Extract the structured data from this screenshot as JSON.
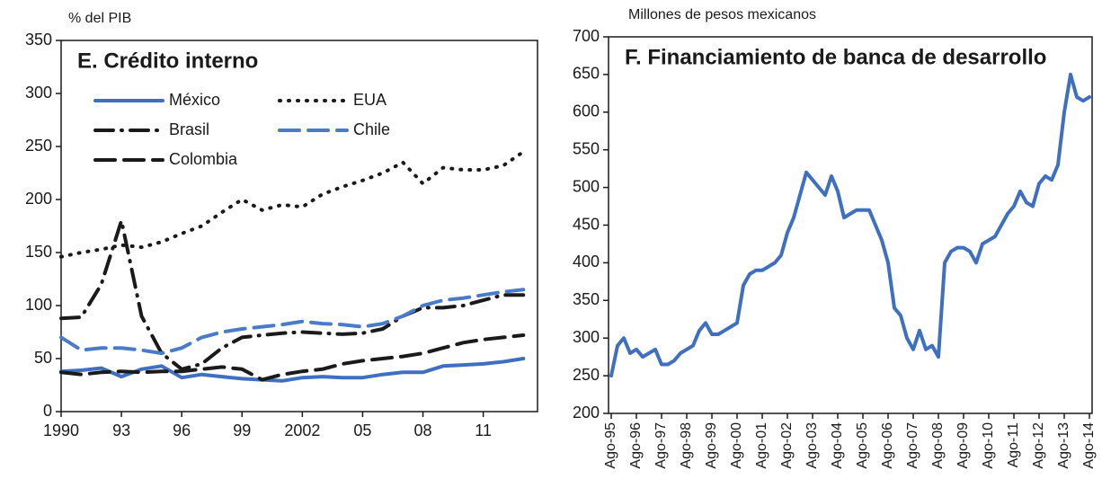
{
  "chart_data": [
    {
      "type": "line",
      "title": "E. Crédito interno",
      "y_label": "% del PIB",
      "x": [
        1990,
        1991,
        1992,
        1993,
        1994,
        1995,
        1996,
        1997,
        1998,
        1999,
        2000,
        2001,
        2002,
        2003,
        2004,
        2005,
        2006,
        2007,
        2008,
        2009,
        2010,
        2011,
        2012,
        2013
      ],
      "xlim": [
        1990,
        2013.7
      ],
      "xticks": [
        1990,
        {
          "value": 1993,
          "label": "93"
        },
        {
          "value": 1996,
          "label": "96"
        },
        {
          "value": 1999,
          "label": "99"
        },
        2002,
        {
          "value": 2005,
          "label": "05"
        },
        {
          "value": 2008,
          "label": "08"
        },
        {
          "value": 2011,
          "label": "11"
        }
      ],
      "ylim": [
        0,
        350
      ],
      "yticks": [
        0,
        50,
        100,
        150,
        200,
        250,
        300,
        350
      ],
      "series": [
        {
          "name": "México",
          "color": "#3f6fc0",
          "style": "solid",
          "values": [
            38,
            39,
            41,
            33,
            40,
            43,
            32,
            35,
            33,
            31,
            30,
            29,
            32,
            33,
            32,
            32,
            35,
            37,
            37,
            43,
            44,
            45,
            47,
            50
          ]
        },
        {
          "name": "Brasil",
          "color": "#1a1a1a",
          "style": "dashdot",
          "values": [
            88,
            89,
            120,
            180,
            90,
            55,
            40,
            45,
            60,
            70,
            72,
            74,
            75,
            74,
            73,
            74,
            78,
            90,
            98,
            98,
            100,
            105,
            110,
            110
          ]
        },
        {
          "name": "Colombia",
          "color": "#1a1a1a",
          "style": "dashed",
          "values": [
            37,
            35,
            37,
            38,
            37,
            38,
            38,
            40,
            42,
            40,
            30,
            35,
            38,
            40,
            45,
            48,
            50,
            52,
            55,
            60,
            65,
            68,
            70,
            72
          ]
        },
        {
          "name": "EUA",
          "color": "#1a1a1a",
          "style": "dotted",
          "values": [
            146,
            150,
            153,
            157,
            155,
            160,
            168,
            175,
            188,
            200,
            190,
            195,
            193,
            205,
            212,
            218,
            225,
            235,
            215,
            230,
            228,
            228,
            232,
            245
          ]
        },
        {
          "name": "Chile",
          "color": "#4a7bc8",
          "style": "dashed",
          "values": [
            70,
            58,
            60,
            60,
            58,
            55,
            60,
            70,
            75,
            78,
            80,
            82,
            85,
            83,
            82,
            80,
            83,
            90,
            100,
            105,
            107,
            110,
            113,
            115
          ]
        }
      ]
    },
    {
      "type": "line",
      "title": "F. Financiamiento de banca de desarrollo",
      "y_label": "Millones de pesos mexicanos",
      "categories": [
        "Ago-95",
        null,
        null,
        null,
        "Ago-96",
        null,
        null,
        null,
        "Ago-97",
        null,
        null,
        null,
        "Ago-98",
        null,
        null,
        null,
        "Ago-99",
        null,
        null,
        null,
        "Ago-00",
        null,
        null,
        null,
        "Ago-01",
        null,
        null,
        null,
        "Ago-02",
        null,
        null,
        null,
        "Ago-03",
        null,
        null,
        null,
        "Ago-04",
        null,
        null,
        null,
        "Ago-05",
        null,
        null,
        null,
        "Ago-06",
        null,
        null,
        null,
        "Ago-07",
        null,
        null,
        null,
        "Ago-08",
        null,
        null,
        null,
        "Ago-09",
        null,
        null,
        null,
        "Ago-10",
        null,
        null,
        null,
        "Ago-11",
        null,
        null,
        null,
        "Ago-12",
        null,
        null,
        null,
        "Ago-13",
        null,
        null,
        null,
        "Ago-14"
      ],
      "values": [
        250,
        290,
        300,
        280,
        285,
        275,
        280,
        285,
        265,
        265,
        270,
        280,
        285,
        290,
        310,
        320,
        305,
        305,
        310,
        315,
        320,
        370,
        385,
        390,
        390,
        395,
        400,
        410,
        440,
        460,
        490,
        520,
        510,
        500,
        490,
        515,
        495,
        460,
        465,
        470,
        470,
        470,
        450,
        430,
        400,
        340,
        330,
        300,
        285,
        310,
        285,
        290,
        275,
        400,
        415,
        420,
        420,
        415,
        400,
        425,
        430,
        435,
        450,
        465,
        475,
        495,
        480,
        475,
        505,
        515,
        510,
        530,
        600,
        650,
        620,
        615,
        620
      ],
      "color": "#3f6fc0",
      "ylim": [
        200,
        700
      ],
      "yticks": [
        200,
        250,
        300,
        350,
        400,
        450,
        500,
        550,
        600,
        650,
        700
      ]
    }
  ]
}
